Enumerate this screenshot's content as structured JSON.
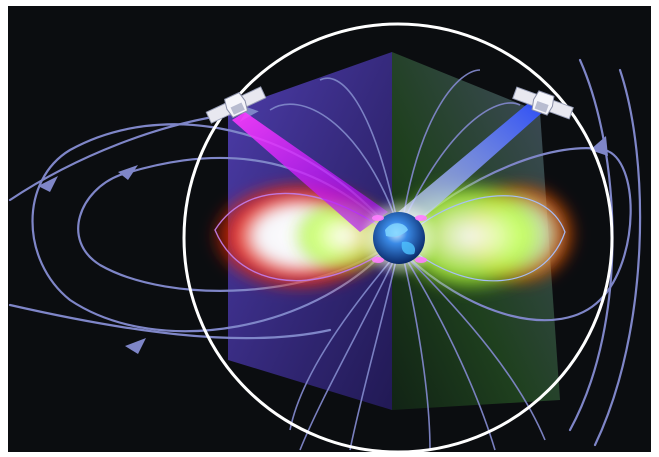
{
  "scene": {
    "subject": "magnetosphere-illustration",
    "elements": [
      "earth",
      "satellite",
      "satellite",
      "field-lines",
      "radiation-belts",
      "orbit-ring",
      "imaging-panels"
    ]
  },
  "colors": {
    "background": "#0b0d10",
    "field_line": "#7f86c8",
    "orbit_ring": "#ffffff",
    "belt_inner": "#ffffff",
    "belt_mid": "#b7ff3a",
    "belt_outer": "#ff2a00",
    "panel_purple": "#4a38b0",
    "panel_green": "#2d6b2b",
    "beam_magenta": "#d51cff",
    "beam_blue": "#3b5bff",
    "earth": "#2e73d9"
  }
}
